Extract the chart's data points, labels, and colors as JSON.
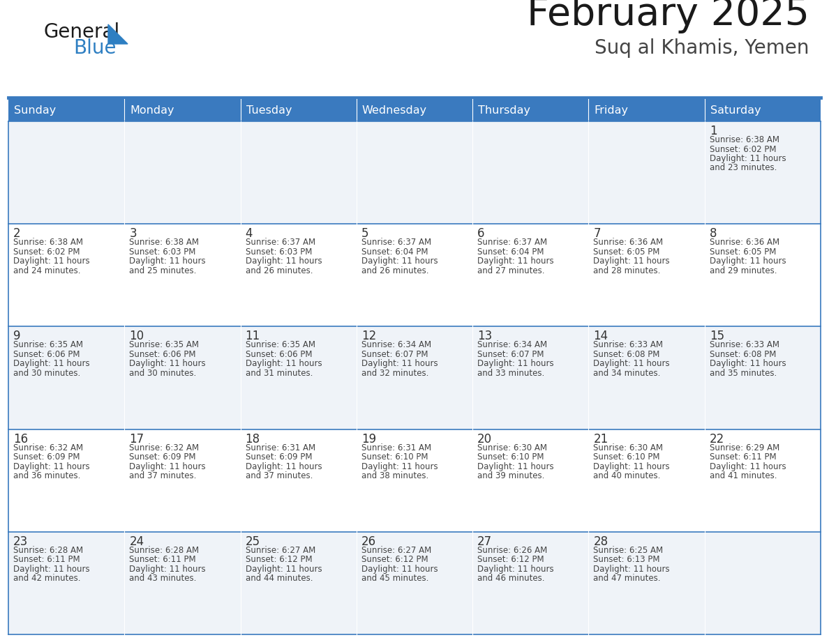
{
  "title": "February 2025",
  "subtitle": "Suq al Khamis, Yemen",
  "days_of_week": [
    "Sunday",
    "Monday",
    "Tuesday",
    "Wednesday",
    "Thursday",
    "Friday",
    "Saturday"
  ],
  "header_bg": "#3a7abf",
  "header_text": "#ffffff",
  "cell_bg_even": "#eff3f8",
  "cell_bg_odd": "#ffffff",
  "border_color": "#3a7abf",
  "text_color": "#444444",
  "day_num_color": "#333333",
  "logo_general_color": "#1a1a1a",
  "logo_blue_color": "#2e7fc2",
  "title_color": "#1a1a1a",
  "subtitle_color": "#444444",
  "calendar_data": [
    [
      null,
      null,
      null,
      null,
      null,
      null,
      1
    ],
    [
      2,
      3,
      4,
      5,
      6,
      7,
      8
    ],
    [
      9,
      10,
      11,
      12,
      13,
      14,
      15
    ],
    [
      16,
      17,
      18,
      19,
      20,
      21,
      22
    ],
    [
      23,
      24,
      25,
      26,
      27,
      28,
      null
    ]
  ],
  "sunrise_data": {
    "1": "6:38 AM",
    "2": "6:38 AM",
    "3": "6:38 AM",
    "4": "6:37 AM",
    "5": "6:37 AM",
    "6": "6:37 AM",
    "7": "6:36 AM",
    "8": "6:36 AM",
    "9": "6:35 AM",
    "10": "6:35 AM",
    "11": "6:35 AM",
    "12": "6:34 AM",
    "13": "6:34 AM",
    "14": "6:33 AM",
    "15": "6:33 AM",
    "16": "6:32 AM",
    "17": "6:32 AM",
    "18": "6:31 AM",
    "19": "6:31 AM",
    "20": "6:30 AM",
    "21": "6:30 AM",
    "22": "6:29 AM",
    "23": "6:28 AM",
    "24": "6:28 AM",
    "25": "6:27 AM",
    "26": "6:27 AM",
    "27": "6:26 AM",
    "28": "6:25 AM"
  },
  "sunset_data": {
    "1": "6:02 PM",
    "2": "6:02 PM",
    "3": "6:03 PM",
    "4": "6:03 PM",
    "5": "6:04 PM",
    "6": "6:04 PM",
    "7": "6:05 PM",
    "8": "6:05 PM",
    "9": "6:06 PM",
    "10": "6:06 PM",
    "11": "6:06 PM",
    "12": "6:07 PM",
    "13": "6:07 PM",
    "14": "6:08 PM",
    "15": "6:08 PM",
    "16": "6:09 PM",
    "17": "6:09 PM",
    "18": "6:09 PM",
    "19": "6:10 PM",
    "20": "6:10 PM",
    "21": "6:10 PM",
    "22": "6:11 PM",
    "23": "6:11 PM",
    "24": "6:11 PM",
    "25": "6:12 PM",
    "26": "6:12 PM",
    "27": "6:12 PM",
    "28": "6:13 PM"
  },
  "daylight_hours": {
    "1": "11",
    "2": "11",
    "3": "11",
    "4": "11",
    "5": "11",
    "6": "11",
    "7": "11",
    "8": "11",
    "9": "11",
    "10": "11",
    "11": "11",
    "12": "11",
    "13": "11",
    "14": "11",
    "15": "11",
    "16": "11",
    "17": "11",
    "18": "11",
    "19": "11",
    "20": "11",
    "21": "11",
    "22": "11",
    "23": "11",
    "24": "11",
    "25": "11",
    "26": "11",
    "27": "11",
    "28": "11"
  },
  "daylight_minutes": {
    "1": "23",
    "2": "24",
    "3": "25",
    "4": "26",
    "5": "26",
    "6": "27",
    "7": "28",
    "8": "29",
    "9": "30",
    "10": "30",
    "11": "31",
    "12": "32",
    "13": "33",
    "14": "34",
    "15": "35",
    "16": "36",
    "17": "37",
    "18": "37",
    "19": "38",
    "20": "39",
    "21": "40",
    "22": "41",
    "23": "42",
    "24": "43",
    "25": "44",
    "26": "45",
    "27": "46",
    "28": "47"
  }
}
